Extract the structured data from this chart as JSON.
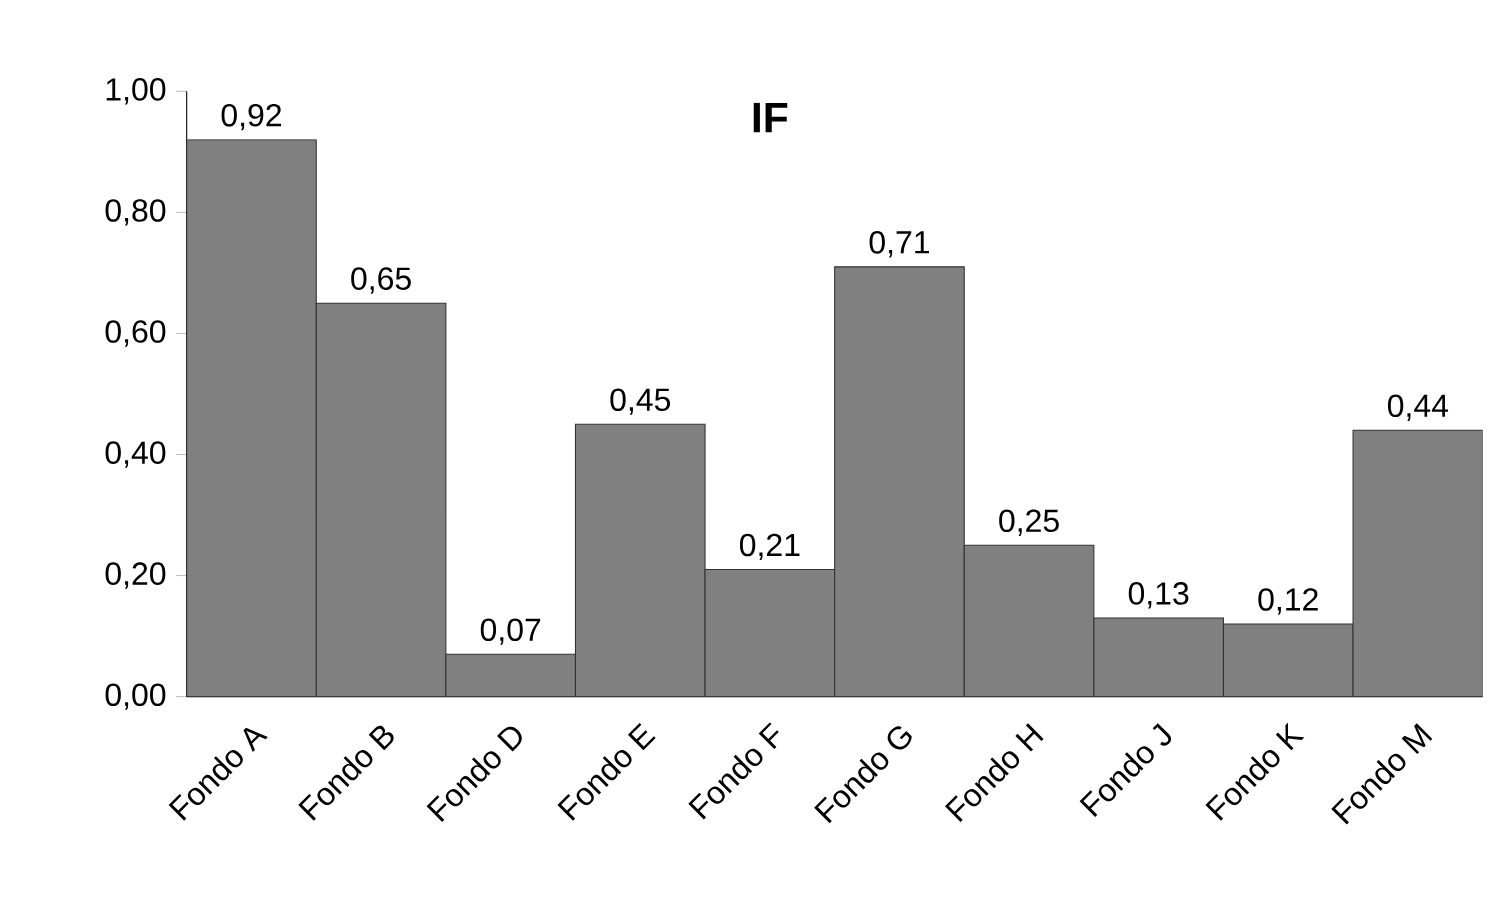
{
  "chart_data": {
    "type": "bar",
    "title": "IF",
    "categories": [
      "Fondo A",
      "Fondo B",
      "Fondo D",
      "Fondo E",
      "Fondo F",
      "Fondo G",
      "Fondo H",
      "Fondo J",
      "Fondo K",
      "Fondo M"
    ],
    "values": [
      0.92,
      0.65,
      0.07,
      0.45,
      0.21,
      0.71,
      0.25,
      0.13,
      0.12,
      0.44
    ],
    "value_labels": [
      "0,92",
      "0,65",
      "0,07",
      "0,45",
      "0,21",
      "0,71",
      "0,25",
      "0,13",
      "0,12",
      "0,44"
    ],
    "color": "#808080",
    "ylim": [
      0,
      1
    ],
    "yticks": [
      {
        "value": 0,
        "label": "0,00"
      },
      {
        "value": 0.2,
        "label": "0,20"
      },
      {
        "value": 0.4,
        "label": "0,40"
      },
      {
        "value": 0.6,
        "label": "0,60"
      },
      {
        "value": 0.8,
        "label": "0,80"
      },
      {
        "value": 1,
        "label": "1,00"
      }
    ],
    "grid": false
  }
}
